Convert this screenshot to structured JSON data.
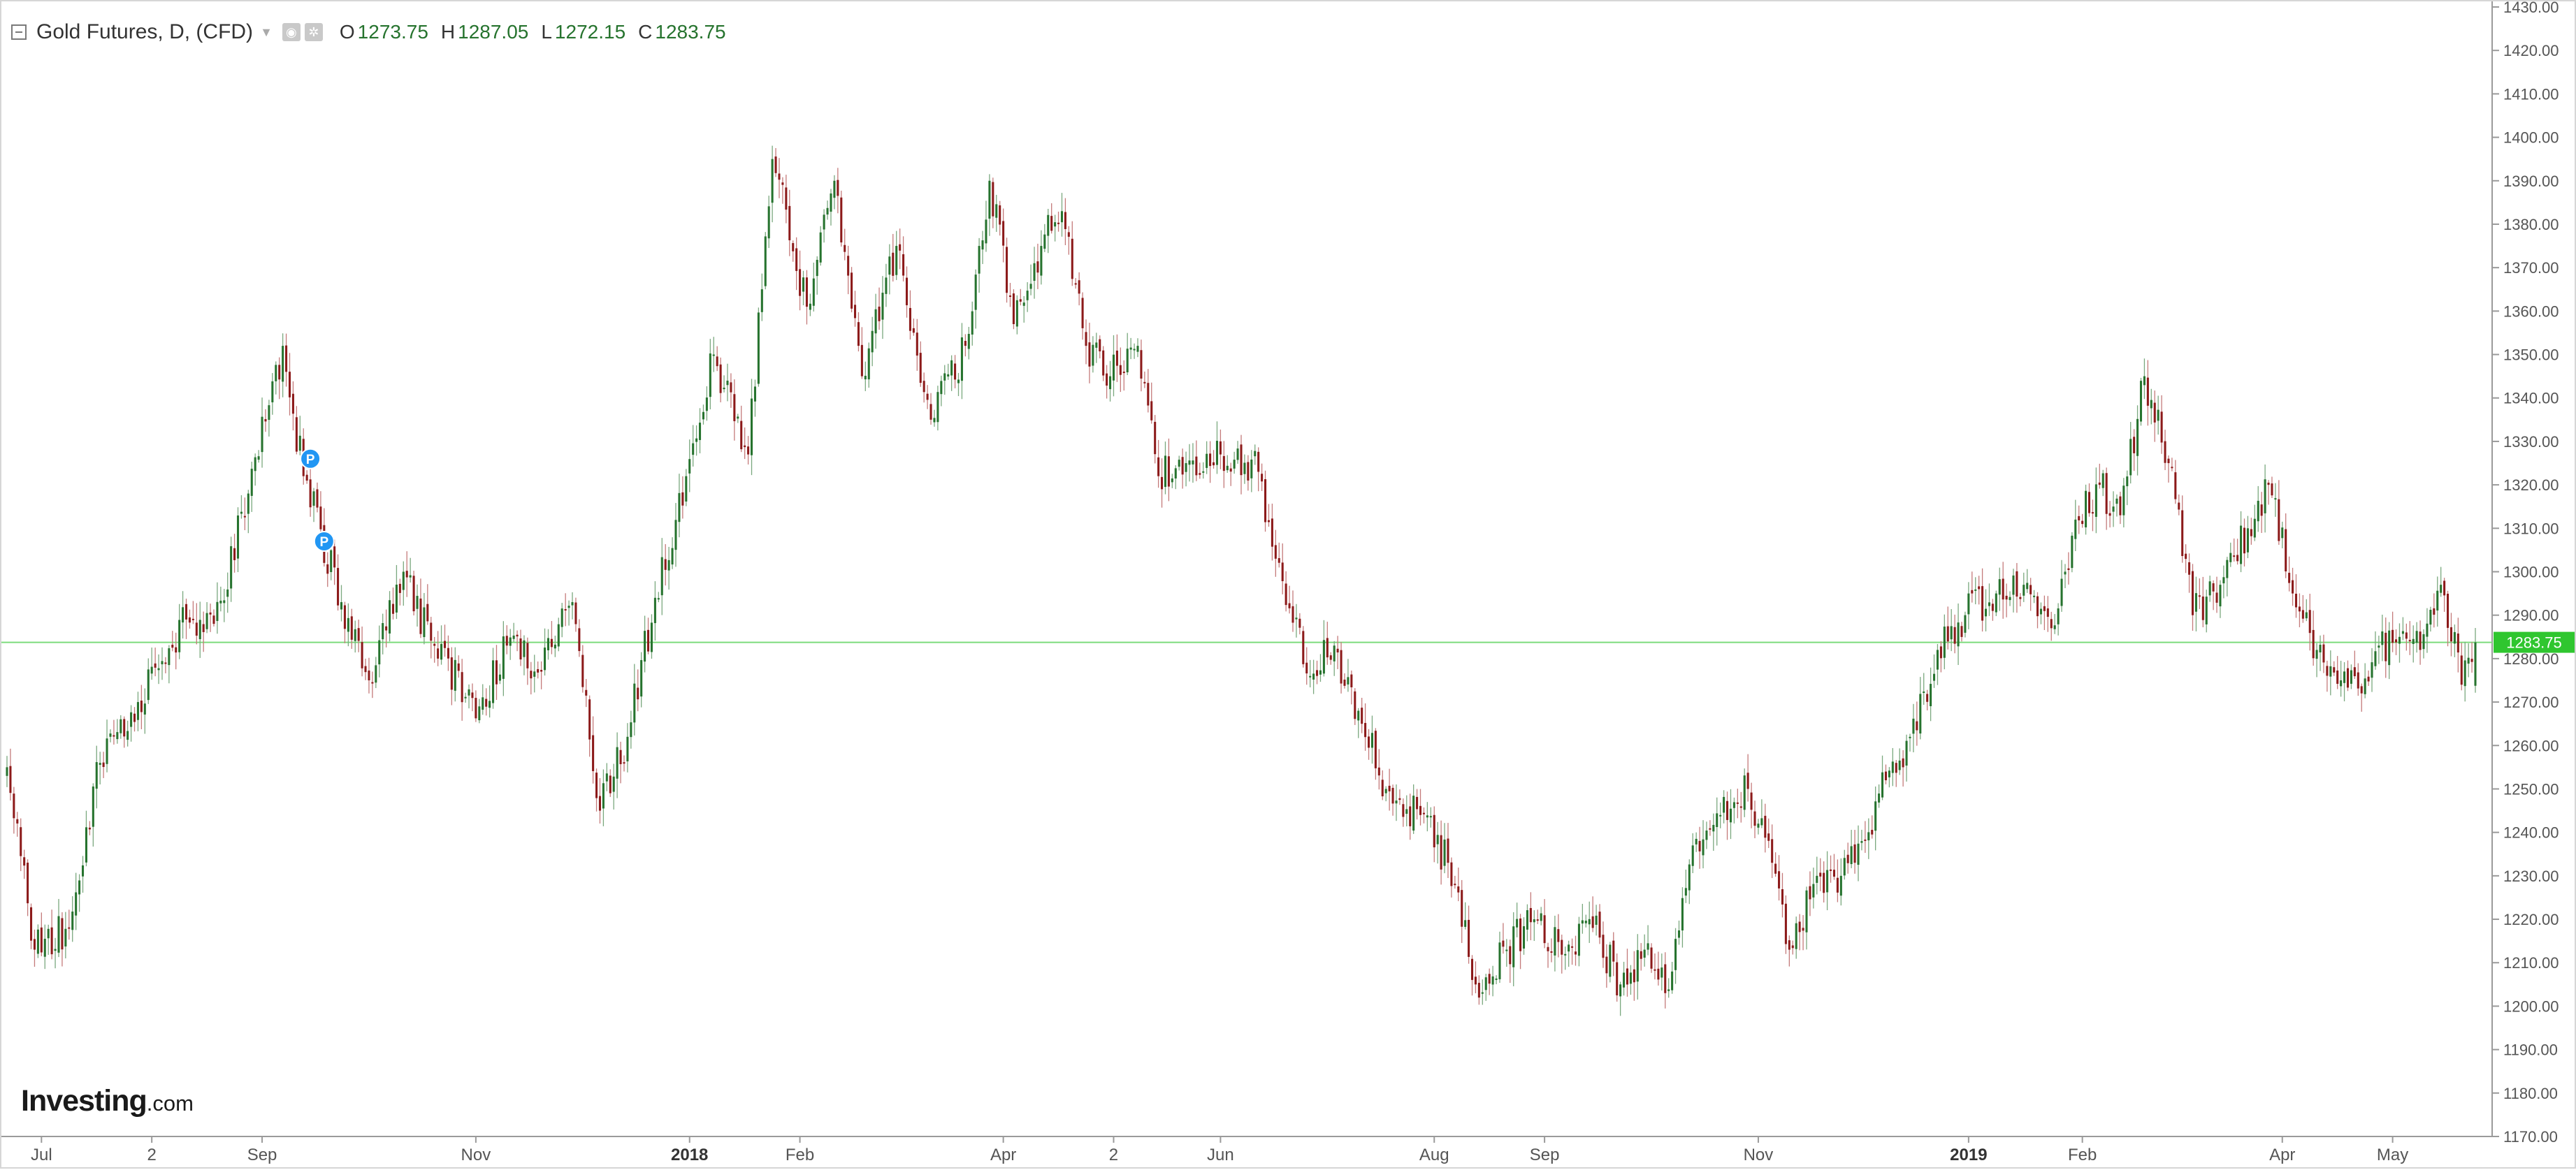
{
  "header": {
    "title": "Gold Futures, D, (CFD)",
    "ohlc": [
      {
        "key": "O",
        "value": "1273.75"
      },
      {
        "key": "H",
        "value": "1287.05"
      },
      {
        "key": "L",
        "value": "1272.15"
      },
      {
        "key": "C",
        "value": "1283.75"
      }
    ]
  },
  "logo": {
    "brand": "Investing",
    "domain": ".com"
  },
  "colors": {
    "up": "#26732e",
    "down": "#8c1a1a",
    "current_line": "#7cdc7c",
    "price_tag": "#2fc62f",
    "marker": "#2196f3"
  },
  "chart_data": {
    "type": "candlestick",
    "title": "Gold Futures, D, (CFD)",
    "ylim": [
      1170,
      1430
    ],
    "y_ticks": [
      "1170.00",
      "1180.00",
      "1190.00",
      "1200.00",
      "1210.00",
      "1220.00",
      "1230.00",
      "1240.00",
      "1250.00",
      "1260.00",
      "1270.00",
      "1280.00",
      "1290.00",
      "1300.00",
      "1310.00",
      "1320.00",
      "1330.00",
      "1340.00",
      "1350.00",
      "1360.00",
      "1370.00",
      "1380.00",
      "1390.00",
      "1400.00",
      "1410.00",
      "1420.00",
      "1430.00"
    ],
    "x_ticks": [
      {
        "label": "Jul",
        "bar": 10,
        "bold": false
      },
      {
        "label": "2",
        "bar": 42,
        "bold": false
      },
      {
        "label": "Sep",
        "bar": 74,
        "bold": false
      },
      {
        "label": "Nov",
        "bar": 136,
        "bold": false
      },
      {
        "label": "2018",
        "bar": 198,
        "bold": true
      },
      {
        "label": "Feb",
        "bar": 230,
        "bold": false
      },
      {
        "label": "Apr",
        "bar": 289,
        "bold": false
      },
      {
        "label": "2",
        "bar": 321,
        "bold": false
      },
      {
        "label": "Jun",
        "bar": 352,
        "bold": false
      },
      {
        "label": "Aug",
        "bar": 414,
        "bold": false
      },
      {
        "label": "Sep",
        "bar": 446,
        "bold": false
      },
      {
        "label": "Nov",
        "bar": 508,
        "bold": false
      },
      {
        "label": "2019",
        "bar": 569,
        "bold": true
      },
      {
        "label": "Feb",
        "bar": 602,
        "bold": false
      },
      {
        "label": "Apr",
        "bar": 660,
        "bold": false
      },
      {
        "label": "May",
        "bar": 692,
        "bold": false
      }
    ],
    "current_price": 1283.75,
    "current_price_label": "1283.75",
    "markers": [
      {
        "label": "P",
        "bar": 88,
        "price": 1326
      },
      {
        "label": "P",
        "bar": 92,
        "price": 1307
      }
    ],
    "bar_count": 717,
    "anchors": [
      [
        0,
        1255
      ],
      [
        8,
        1213
      ],
      [
        18,
        1218
      ],
      [
        27,
        1256
      ],
      [
        38,
        1270
      ],
      [
        52,
        1289
      ],
      [
        60,
        1288
      ],
      [
        70,
        1318
      ],
      [
        80,
        1352
      ],
      [
        86,
        1322
      ],
      [
        97,
        1293
      ],
      [
        105,
        1275
      ],
      [
        115,
        1300
      ],
      [
        125,
        1280
      ],
      [
        137,
        1269
      ],
      [
        145,
        1283
      ],
      [
        155,
        1277
      ],
      [
        164,
        1293
      ],
      [
        172,
        1245
      ],
      [
        180,
        1262
      ],
      [
        188,
        1294
      ],
      [
        197,
        1322
      ],
      [
        205,
        1350
      ],
      [
        215,
        1327
      ],
      [
        222,
        1395
      ],
      [
        232,
        1361
      ],
      [
        240,
        1390
      ],
      [
        248,
        1345
      ],
      [
        258,
        1375
      ],
      [
        268,
        1335
      ],
      [
        278,
        1352
      ],
      [
        285,
        1390
      ],
      [
        292,
        1357
      ],
      [
        300,
        1375
      ],
      [
        306,
        1383
      ],
      [
        313,
        1352
      ],
      [
        320,
        1345
      ],
      [
        328,
        1352
      ],
      [
        334,
        1322
      ],
      [
        342,
        1325
      ],
      [
        352,
        1327
      ],
      [
        363,
        1323
      ],
      [
        368,
        1303
      ],
      [
        378,
        1276
      ],
      [
        385,
        1283
      ],
      [
        393,
        1265
      ],
      [
        400,
        1250
      ],
      [
        410,
        1244
      ],
      [
        418,
        1233
      ],
      [
        426,
        1205
      ],
      [
        435,
        1213
      ],
      [
        443,
        1220
      ],
      [
        452,
        1212
      ],
      [
        460,
        1218
      ],
      [
        468,
        1205
      ],
      [
        475,
        1213
      ],
      [
        481,
        1203
      ],
      [
        489,
        1237
      ],
      [
        497,
        1244
      ],
      [
        505,
        1250
      ],
      [
        512,
        1233
      ],
      [
        517,
        1213
      ],
      [
        525,
        1230
      ],
      [
        532,
        1230
      ],
      [
        538,
        1238
      ],
      [
        545,
        1252
      ],
      [
        552,
        1262
      ],
      [
        560,
        1282
      ],
      [
        568,
        1290
      ],
      [
        577,
        1295
      ],
      [
        585,
        1297
      ],
      [
        593,
        1287
      ],
      [
        600,
        1312
      ],
      [
        607,
        1320
      ],
      [
        613,
        1313
      ],
      [
        620,
        1345
      ],
      [
        627,
        1325
      ],
      [
        634,
        1290
      ],
      [
        642,
        1297
      ],
      [
        650,
        1310
      ],
      [
        656,
        1320
      ],
      [
        663,
        1295
      ],
      [
        670,
        1282
      ],
      [
        677,
        1275
      ],
      [
        683,
        1272
      ],
      [
        688,
        1283
      ],
      [
        694,
        1285
      ],
      [
        700,
        1282
      ],
      [
        706,
        1297
      ],
      [
        712,
        1274
      ],
      [
        716,
        1283.75
      ]
    ]
  }
}
